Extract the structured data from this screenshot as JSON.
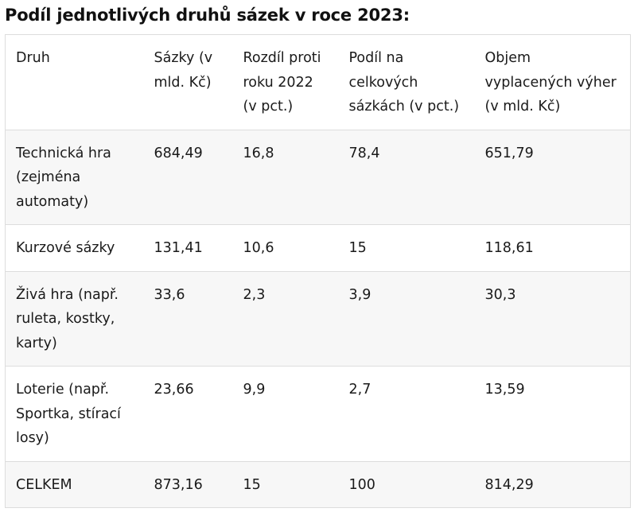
{
  "title": "Podíl jednotlivých druhů sázek v roce 2023:",
  "table": {
    "headers": [
      "Druh",
      "Sázky (v mld. Kč)",
      "Rozdíl proti roku 2022 (v pct.)",
      "Podíl na celkových sázkách (v pct.)",
      "Objem vyplacených výher (v mld. Kč)"
    ],
    "rows": [
      [
        "Technická hra (zejména automaty)",
        "684,49",
        "16,8",
        "78,4",
        "651,79"
      ],
      [
        "Kurzové sázky",
        "131,41",
        "10,6",
        "15",
        "118,61"
      ],
      [
        "Živá hra (např. ruleta, kostky, karty)",
        "33,6",
        "2,3",
        "3,9",
        "30,3"
      ],
      [
        "Loterie (např. Sportka, stírací losy)",
        "23,66",
        "9,9",
        "2,7",
        "13,59"
      ],
      [
        "CELKEM",
        "873,16",
        "15",
        "100",
        "814,29"
      ]
    ]
  },
  "colors": {
    "border": "#dddddd",
    "row_alt_bg": "#f7f7f7",
    "text": "#1a1a1a"
  }
}
